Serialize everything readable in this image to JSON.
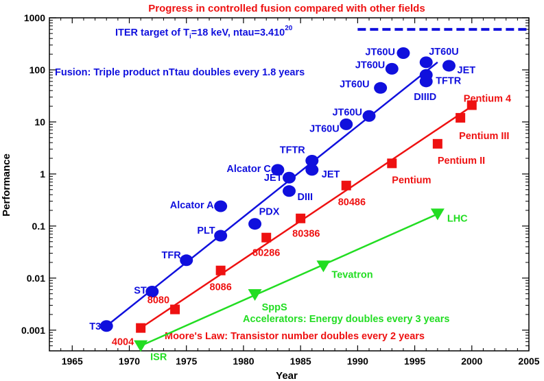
{
  "chart_data": {
    "type": "scatter",
    "title": "Progress in controlled fusion compared with other fields",
    "xlabel": "Year",
    "ylabel": "Performance",
    "xlim": [
      1963,
      2005
    ],
    "ylim": [
      0.0004,
      1000
    ],
    "yscale": "log",
    "grid": false,
    "xticks": [
      1965,
      1970,
      1975,
      1980,
      1985,
      1990,
      1995,
      2000,
      2005
    ],
    "yticks": [
      {
        "value": 0.001,
        "label": "0.001"
      },
      {
        "value": 0.01,
        "label": "0.01"
      },
      {
        "value": 0.1,
        "label": "0.1"
      },
      {
        "value": 1,
        "label": "1"
      },
      {
        "value": 10,
        "label": "10"
      },
      {
        "value": 100,
        "label": "100"
      },
      {
        "value": 1000,
        "label": "1000"
      }
    ],
    "iter_target": {
      "label_prefix": "ITER target of T",
      "label_sub": "i",
      "label_mid": "=18 keV, ntau=3.410",
      "label_sup": "20",
      "value": 600,
      "x_from": 1990,
      "x_to": 2005,
      "color": "#1010dd"
    },
    "annotations": [
      {
        "text": "Fusion: Triple product nTtau doubles every 1.8 years",
        "color": "#1010dd"
      },
      {
        "text": "Accelerators: Energy doubles every 3 years",
        "color": "#22dd22"
      },
      {
        "text": "Moore's Law: Transistor number doubles every 2 years",
        "color": "#ee1111"
      }
    ],
    "series": [
      {
        "name": "Fusion",
        "color": "#1010dd",
        "marker": "circle",
        "trend": {
          "x": [
            1968,
            1997
          ],
          "y": [
            0.0012,
            140
          ]
        },
        "points": [
          {
            "x": 1968,
            "y": 0.0012,
            "label": "T3"
          },
          {
            "x": 1972,
            "y": 0.0055,
            "label": "ST"
          },
          {
            "x": 1975,
            "y": 0.022,
            "label": "TFR"
          },
          {
            "x": 1978,
            "y": 0.065,
            "label": "PLT"
          },
          {
            "x": 1978,
            "y": 0.24,
            "label": "Alcator A"
          },
          {
            "x": 1981,
            "y": 0.11,
            "label": "PDX"
          },
          {
            "x": 1983,
            "y": 1.2,
            "label": "Alcator C"
          },
          {
            "x": 1984,
            "y": 0.85,
            "label": "JET"
          },
          {
            "x": 1984,
            "y": 0.47,
            "label": "DIII"
          },
          {
            "x": 1986,
            "y": 1.8,
            "label": "TFTR"
          },
          {
            "x": 1986,
            "y": 1.2,
            "label": "JET"
          },
          {
            "x": 1989,
            "y": 9,
            "label": "JT60U"
          },
          {
            "x": 1991,
            "y": 13,
            "label": "JT60U"
          },
          {
            "x": 1992,
            "y": 45,
            "label": "JT60U"
          },
          {
            "x": 1993,
            "y": 105,
            "label": "JT60U"
          },
          {
            "x": 1994,
            "y": 210,
            "label": "JT60U"
          },
          {
            "x": 1996,
            "y": 140,
            "label": "JT60U"
          },
          {
            "x": 1998,
            "y": 120,
            "label": "JET"
          },
          {
            "x": 1996,
            "y": 80,
            "label": "TFTR"
          },
          {
            "x": 1996,
            "y": 60,
            "label": "DIIID"
          }
        ]
      },
      {
        "name": "Moore's Law",
        "color": "#ee1111",
        "marker": "square",
        "trend": {
          "x": [
            1971,
            2000
          ],
          "y": [
            0.0011,
            20
          ]
        },
        "points": [
          {
            "x": 1971,
            "y": 0.0011,
            "label": "4004"
          },
          {
            "x": 1974,
            "y": 0.0025,
            "label": "8080"
          },
          {
            "x": 1978,
            "y": 0.014,
            "label": "8086"
          },
          {
            "x": 1982,
            "y": 0.06,
            "label": "80286"
          },
          {
            "x": 1985,
            "y": 0.14,
            "label": "80386"
          },
          {
            "x": 1989,
            "y": 0.6,
            "label": "80486"
          },
          {
            "x": 1993,
            "y": 1.6,
            "label": "Pentium"
          },
          {
            "x": 1997,
            "y": 3.8,
            "label": "Pentium II"
          },
          {
            "x": 1999,
            "y": 12,
            "label": "Pentium III"
          },
          {
            "x": 2000,
            "y": 21,
            "label": "Pentium 4"
          }
        ]
      },
      {
        "name": "Accelerators",
        "color": "#22dd22",
        "marker": "triangle-down",
        "trend": {
          "x": [
            1971,
            1997
          ],
          "y": [
            0.0005,
            0.17
          ]
        },
        "points": [
          {
            "x": 1971,
            "y": 0.0005,
            "label": "ISR"
          },
          {
            "x": 1981,
            "y": 0.0048,
            "label": "SppS"
          },
          {
            "x": 1987,
            "y": 0.017,
            "label": "Tevatron"
          },
          {
            "x": 1997,
            "y": 0.17,
            "label": "LHC"
          }
        ]
      }
    ]
  }
}
